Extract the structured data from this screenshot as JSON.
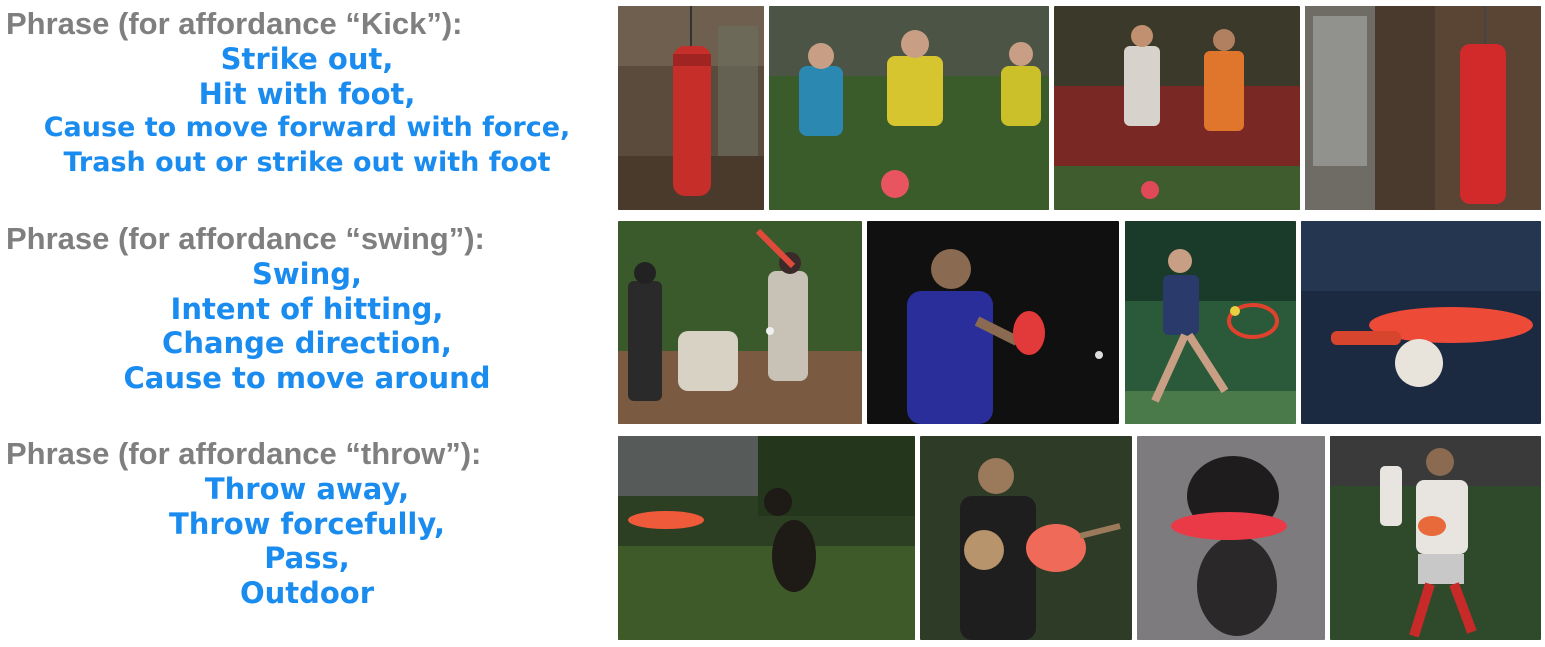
{
  "rows": [
    {
      "heading": "Phrase (for affordance “Kick”):",
      "phrases": [
        "Strike out,",
        "Hit with foot,",
        "Cause to move forward with force,",
        "Trash out or strike out with foot"
      ],
      "images": [
        {
          "name": "punching-bag-gym-image",
          "bg": "#5a4b3c",
          "obj": "#d3302e"
        },
        {
          "name": "kids-soccer-image",
          "bg": "#2f4a24",
          "obj": "#d6c52e"
        },
        {
          "name": "pro-soccer-match-image",
          "bg": "#3b3a2a",
          "obj": "#e0762c"
        },
        {
          "name": "punching-bag-room-image",
          "bg": "#4a3a2d",
          "obj": "#d52a2a"
        }
      ]
    },
    {
      "heading": "Phrase (for affordance “swing”):",
      "phrases": [
        "Swing,",
        "Intent of hitting,",
        "Change direction,",
        "Cause to move around"
      ],
      "images": [
        {
          "name": "baseball-batter-image",
          "bg": "#3a5a2c",
          "obj": "#d8d2c4"
        },
        {
          "name": "table-tennis-player-image",
          "bg": "#101010",
          "obj": "#e23a3a"
        },
        {
          "name": "tennis-player-image",
          "bg": "#2a5a3a",
          "obj": "#e0412d"
        },
        {
          "name": "ping-pong-paddle-image",
          "bg": "#1b2a40",
          "obj": "#ee4a38"
        }
      ]
    },
    {
      "heading": "Phrase (for affordance “throw”):",
      "phrases": [
        "Throw away,",
        "Throw forcefully,",
        "Pass,",
        "Outdoor"
      ],
      "images": [
        {
          "name": "dog-frisbee-yard-image",
          "bg": "#2c3f22",
          "obj": "#ef5a3a"
        },
        {
          "name": "kids-frisbee-image",
          "bg": "#2e3b26",
          "obj": "#ef6a58"
        },
        {
          "name": "dog-frisbee-snow-image",
          "bg": "#7d7b7d",
          "obj": "#ea3a48"
        },
        {
          "name": "rugby-player-image",
          "bg": "#2f4a2a",
          "obj": "#e8e4e0"
        }
      ]
    }
  ]
}
